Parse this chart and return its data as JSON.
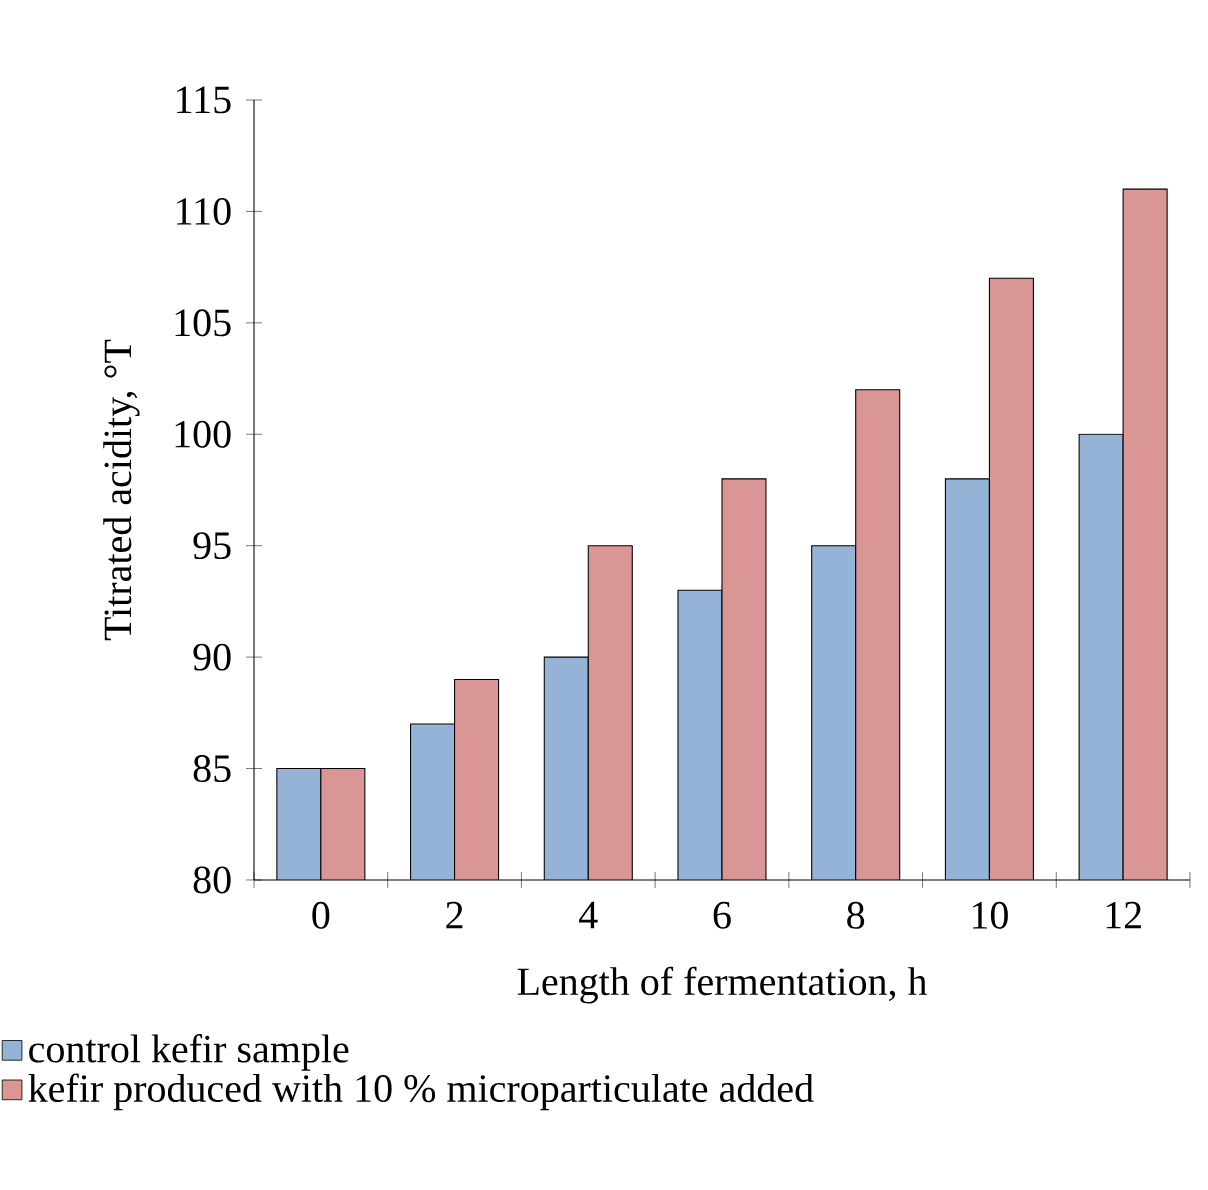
{
  "chart_data": {
    "type": "bar",
    "xlabel": "Length of fermentation, h",
    "ylabel": "Titrated acidity, °T",
    "categories": [
      "0",
      "2",
      "4",
      "6",
      "8",
      "10",
      "12"
    ],
    "series": [
      {
        "name": "control kefir sample",
        "color": "#95b3d7",
        "values": [
          85,
          87,
          90,
          93,
          95,
          98,
          100
        ]
      },
      {
        "name": "kefir produced with 10 % microparticulate added",
        "color": "#d99694",
        "values": [
          85,
          89,
          95,
          98,
          102,
          107,
          111
        ]
      }
    ],
    "ylim": [
      80,
      115
    ],
    "yticks": [
      80,
      85,
      90,
      95,
      100,
      105,
      110,
      115
    ],
    "grid": false,
    "legend": "bottom"
  }
}
